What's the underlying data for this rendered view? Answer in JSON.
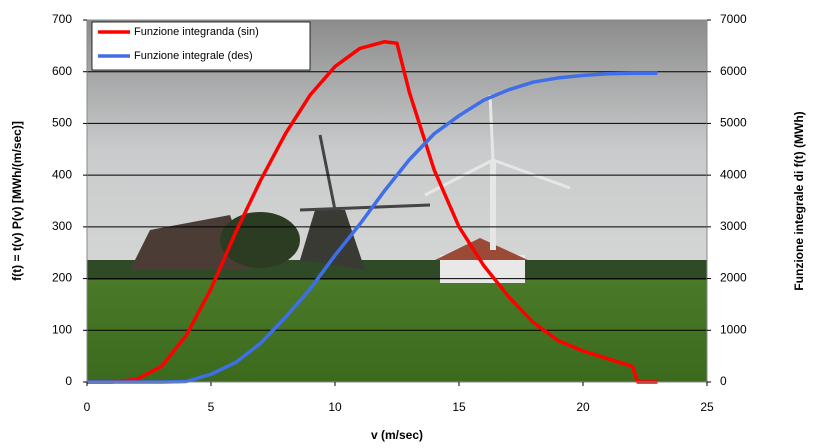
{
  "chart_data": {
    "type": "line",
    "x_label": "v (m/sec)",
    "y_label": "f(t) = t(v) P(v) [MWh/(m/sec)]",
    "y2_label": "Funzione integrale di f(t) (MWh)",
    "x": [
      0,
      1,
      2,
      3,
      4,
      5,
      6,
      7,
      8,
      9,
      10,
      11,
      12,
      12.5,
      13,
      14,
      15,
      16,
      17,
      18,
      19,
      20,
      21,
      22,
      22.2,
      23
    ],
    "series": [
      {
        "name": "Funzione integranda (sin)",
        "color": "#ff0000",
        "values": [
          0,
          0,
          5,
          30,
          90,
          180,
          290,
          390,
          480,
          555,
          610,
          645,
          658,
          655,
          560,
          410,
          300,
          225,
          165,
          115,
          80,
          60,
          45,
          30,
          0,
          0
        ]
      },
      {
        "name": "Funzione integrale (des)",
        "color": "#3f6fe8",
        "axis": "y2",
        "values": [
          0,
          0,
          0,
          0,
          10,
          150,
          380,
          750,
          1250,
          1800,
          2450,
          3050,
          3700,
          4000,
          4300,
          4800,
          5150,
          5450,
          5650,
          5800,
          5880,
          5930,
          5960,
          5970,
          5970,
          5970
        ]
      }
    ],
    "xlim": [
      0,
      25
    ],
    "xticks": [
      0,
      5,
      10,
      15,
      20,
      25
    ],
    "ylim": [
      0,
      700
    ],
    "yticks": [
      0,
      100,
      200,
      300,
      400,
      500,
      600,
      700
    ],
    "y2lim": [
      0,
      7000
    ],
    "y2ticks": [
      0,
      1000,
      2000,
      3000,
      4000,
      5000,
      6000,
      7000
    ],
    "grid": true,
    "legend": "top-left"
  }
}
